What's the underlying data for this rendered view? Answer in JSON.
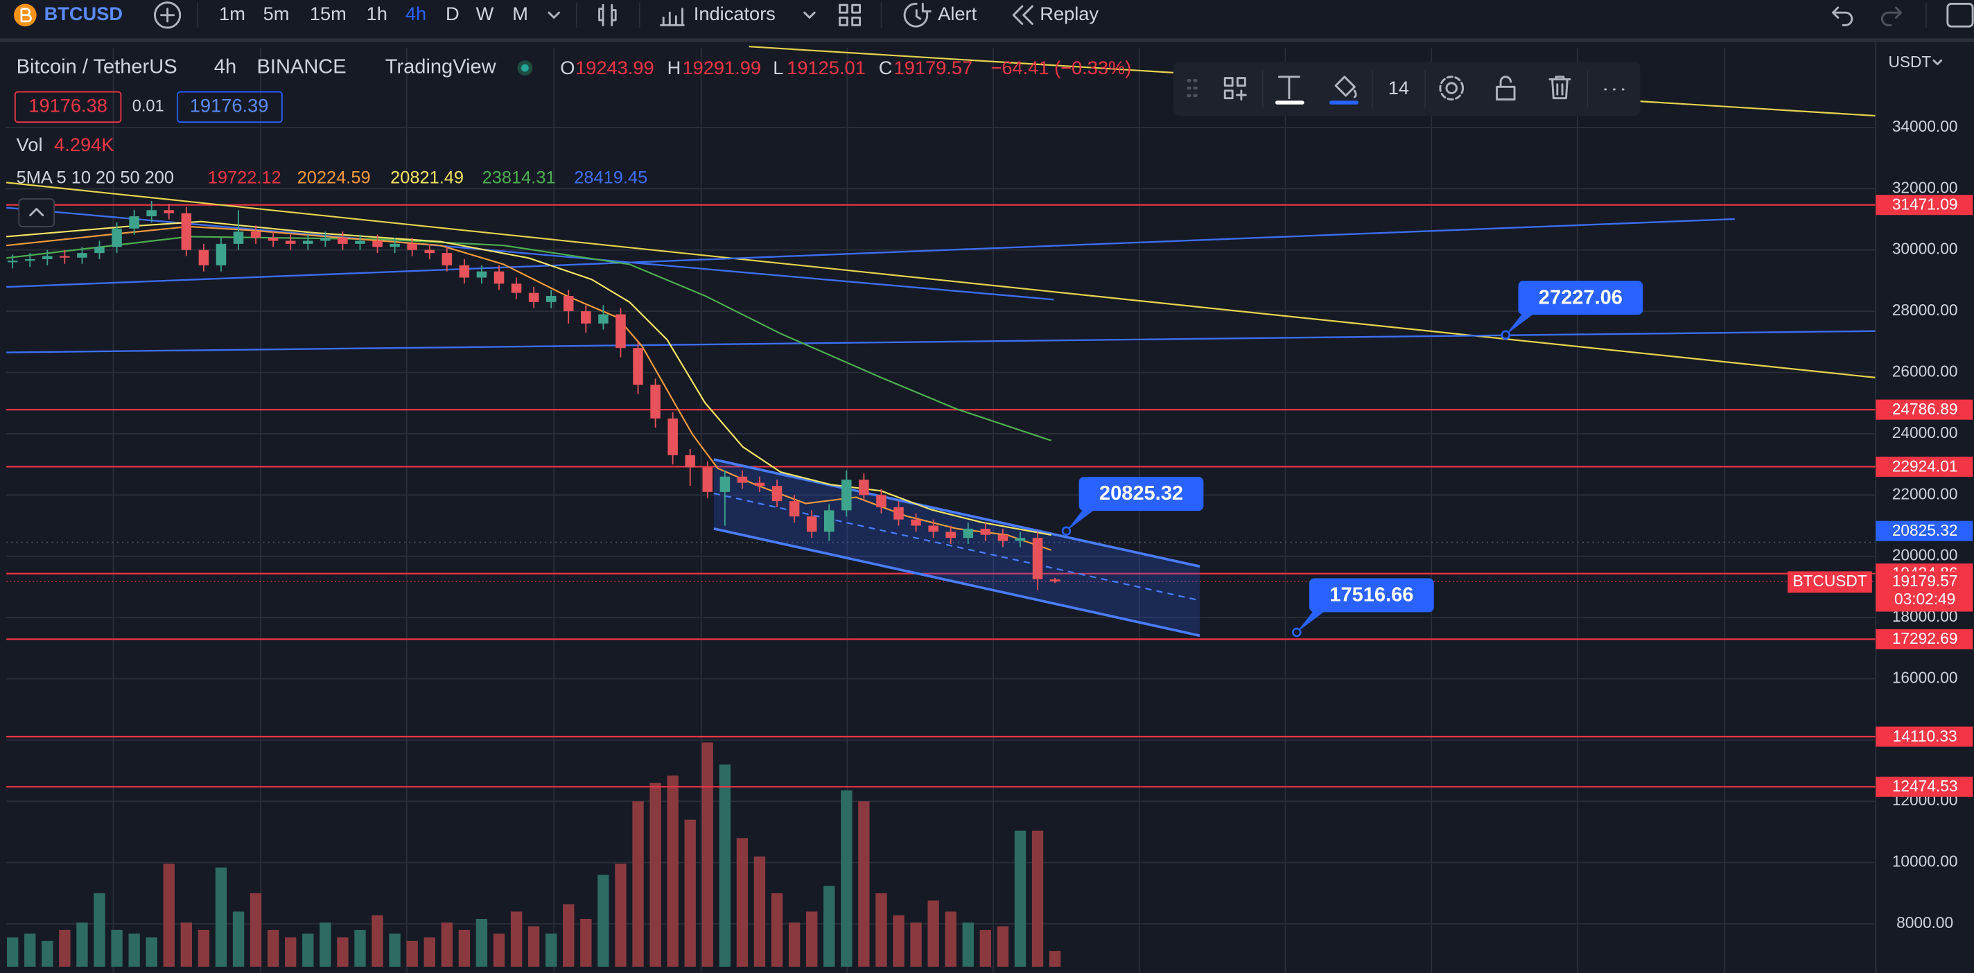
{
  "toolbar": {
    "symbol": "BTCUSD",
    "intervals": [
      "1m",
      "5m",
      "15m",
      "1h",
      "4h",
      "D",
      "W",
      "M"
    ],
    "indicators": "Indicators",
    "alert": "Alert",
    "replay": "Replay"
  },
  "legend": {
    "name": "Bitcoin / TetherUS",
    "interval": "4h",
    "exchange": "BINANCE",
    "source": "TradingView",
    "open_label": "O",
    "open": "19243.99",
    "high_label": "H",
    "high": "19291.99",
    "low_label": "L",
    "low": "19125.01",
    "close_label": "C",
    "close": "19179.57",
    "change": "−64.41 (−0.33%)",
    "sell": "19176.38",
    "spread": "0.01",
    "buy": "19176.39",
    "volume_label": "Vol",
    "volume": "4.294K",
    "ma_label": "5MA 5 10 20 50 200",
    "ma_values": [
      "19722.12",
      "20224.59",
      "20821.49",
      "23814.31",
      "28419.45"
    ]
  },
  "drawing_toolbar": {
    "font_size": "14"
  },
  "axis_currency": "USDT",
  "chart_data": {
    "type": "candlestick",
    "open": [
      29600,
      29650,
      29700,
      29800,
      29750,
      29900,
      30100,
      30700,
      31100,
      31300,
      31200,
      30000,
      29500,
      30200,
      30600,
      30400,
      30300,
      30200,
      30300,
      30400,
      30200,
      30300,
      30100,
      30200,
      30000,
      29900,
      29500,
      29100,
      29300,
      28900,
      28600,
      28300,
      28500,
      28000,
      27600,
      27900,
      26800,
      25600,
      24500,
      23300,
      22900,
      22100,
      22600,
      22400,
      22300,
      21800,
      21300,
      20800,
      21500,
      22500,
      22000,
      21600,
      21200,
      21000,
      20800,
      20600,
      20900,
      20700,
      20500,
      20600,
      19243.99
    ],
    "high": [
      29850,
      29900,
      30000,
      30000,
      30100,
      30300,
      30900,
      31300,
      31600,
      31500,
      31400,
      30200,
      30400,
      31300,
      30800,
      30600,
      30500,
      30500,
      30600,
      30600,
      30500,
      30500,
      30400,
      30400,
      30200,
      30100,
      29700,
      29500,
      29500,
      29100,
      28800,
      28700,
      28700,
      28200,
      28200,
      28100,
      27000,
      25800,
      24700,
      23500,
      23100,
      22800,
      22800,
      22600,
      22500,
      22000,
      21500,
      21700,
      22800,
      22700,
      22200,
      21800,
      21400,
      21200,
      21000,
      21100,
      21100,
      20900,
      20800,
      20800,
      19291.99
    ],
    "low": [
      29400,
      29450,
      29500,
      29550,
      29550,
      29700,
      29900,
      30500,
      30900,
      31000,
      29800,
      29300,
      29300,
      30000,
      30200,
      30100,
      30000,
      30000,
      30100,
      30000,
      30000,
      29900,
      29900,
      29800,
      29700,
      29300,
      28900,
      28900,
      28700,
      28400,
      28100,
      28100,
      27600,
      27300,
      27400,
      26500,
      25300,
      24200,
      23000,
      22300,
      21900,
      21000,
      22200,
      22100,
      21600,
      21100,
      20600,
      20500,
      21300,
      21800,
      21400,
      21000,
      20800,
      20600,
      20400,
      20400,
      20500,
      20300,
      20300,
      18900,
      19125.01
    ],
    "close": [
      29650,
      29700,
      29800,
      29750,
      29900,
      30100,
      30700,
      31100,
      31300,
      31200,
      30000,
      29500,
      30200,
      30600,
      30400,
      30300,
      30200,
      30300,
      30400,
      30200,
      30300,
      30100,
      30200,
      30000,
      29900,
      29500,
      29100,
      29300,
      28900,
      28600,
      28300,
      28500,
      28000,
      27600,
      27900,
      26800,
      25600,
      24500,
      23300,
      22900,
      22100,
      22600,
      22400,
      22300,
      21800,
      21300,
      20800,
      21500,
      22500,
      22000,
      21600,
      21200,
      21000,
      20800,
      20600,
      20900,
      20700,
      20500,
      20600,
      19250,
      19179.57
    ],
    "volume": [
      8,
      9,
      7,
      10,
      12,
      20,
      10,
      9,
      8,
      28,
      12,
      10,
      27,
      15,
      20,
      10,
      8,
      9,
      12,
      8,
      10,
      14,
      9,
      7,
      8,
      12,
      10,
      13,
      9,
      15,
      11,
      9,
      17,
      13,
      25,
      28,
      45,
      50,
      52,
      40,
      61,
      55,
      35,
      30,
      20,
      12,
      15,
      22,
      48,
      45,
      20,
      14,
      12,
      18,
      15,
      12,
      10,
      11,
      37,
      37,
      4.294
    ],
    "volume_ylim": [
      0,
      250
    ],
    "up_color": "#3ea38c",
    "down_color": "#e8525a",
    "volume_up_color": "#2d6b63",
    "volume_down_color": "#8a3a3f",
    "level_color": "#f23645",
    "marker_color": "#2962ff",
    "ylim": [
      6600,
      36600
    ],
    "yticks": [
      {
        "value": 8000,
        "label": "8000.00"
      },
      {
        "value": 10000,
        "label": "10000.00"
      },
      {
        "value": 12000,
        "label": "12000.00"
      },
      {
        "value": 14000,
        "label": "14000.00"
      },
      {
        "value": 16000,
        "label": "16000.00"
      },
      {
        "value": 18000,
        "label": "18000.00"
      },
      {
        "value": 20000,
        "label": "20000.00"
      },
      {
        "value": 22000,
        "label": "22000.00"
      },
      {
        "value": 24000,
        "label": "24000.00"
      },
      {
        "value": 26000,
        "label": "26000.00"
      },
      {
        "value": 28000,
        "label": "28000.00"
      },
      {
        "value": 30000,
        "label": "30000.00"
      },
      {
        "value": 32000,
        "label": "32000.00"
      },
      {
        "value": 34000,
        "label": "34000.00"
      }
    ],
    "grid": true,
    "levels": [
      31471.09,
      24786.89,
      22924.01,
      19434.86,
      17292.69,
      14110.33,
      12474.53
    ],
    "axis_marker": 20825.32,
    "last_price": 19179.57,
    "countdown": "03:02:49",
    "symbol_tag": "BTCUSDT",
    "callouts": [
      27227.06,
      20825.32,
      17516.66
    ]
  }
}
